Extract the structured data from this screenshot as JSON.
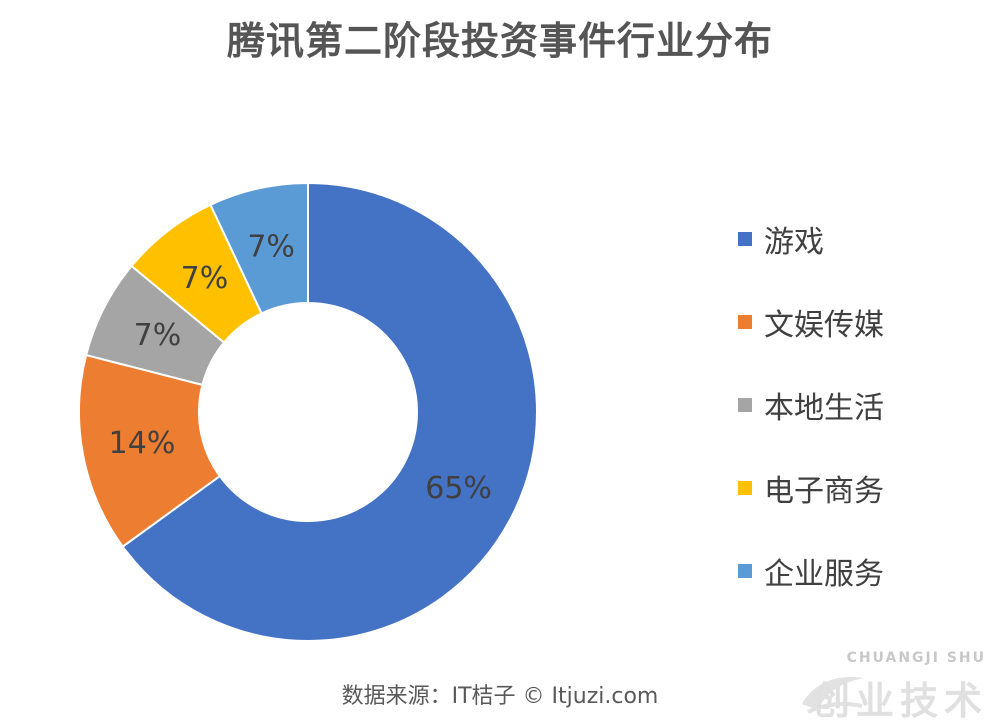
{
  "chart_data": {
    "type": "pie",
    "style": "donut",
    "title": "腾讯第二阶段投资事件行业分布",
    "categories": [
      "游戏",
      "文娱传媒",
      "本地生活",
      "电子商务",
      "企业服务"
    ],
    "values": [
      65,
      14,
      7,
      7,
      7
    ],
    "labels": [
      "65%",
      "14%",
      "7%",
      "7%",
      "7%"
    ],
    "colors": [
      "#4472C4",
      "#ED7D31",
      "#A5A5A5",
      "#FFC000",
      "#5B9BD5"
    ],
    "legend_position": "right"
  },
  "source": "数据来源：IT桔子 © Itjuzi.com",
  "watermark": {
    "top": "CHUANGJI SHU",
    "bottom": "创业技术"
  }
}
